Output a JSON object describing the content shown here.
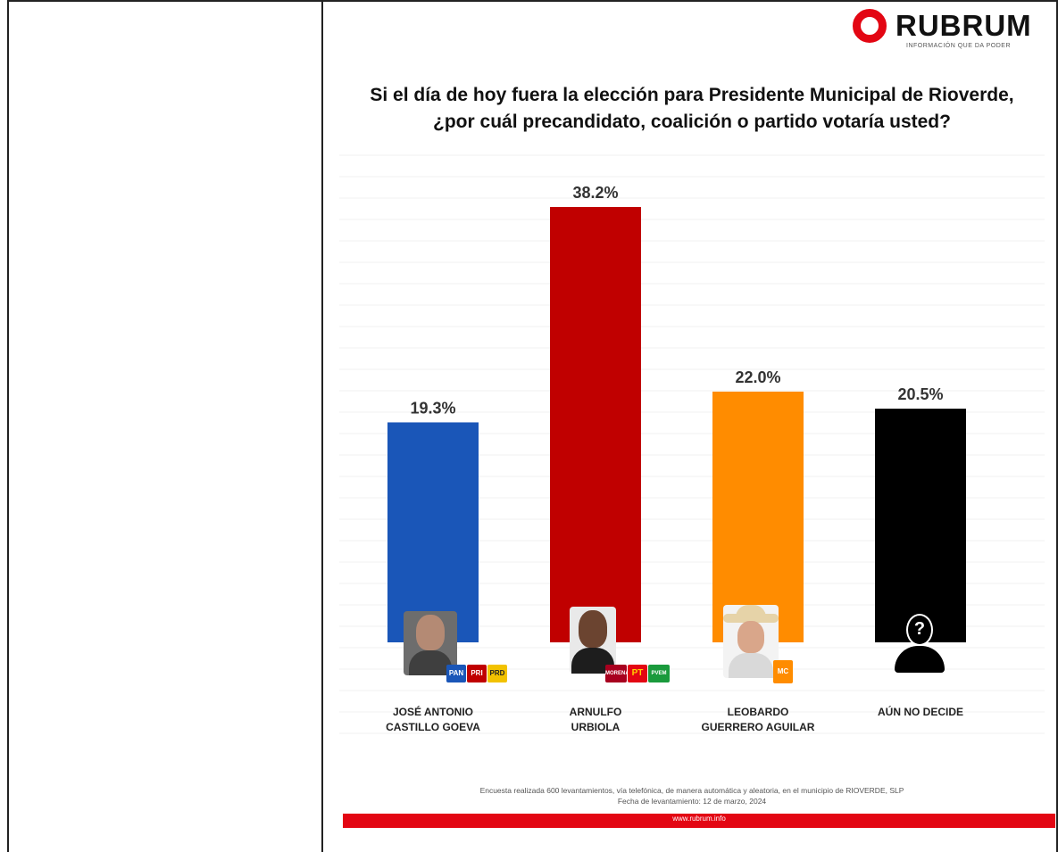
{
  "brand": {
    "name": "RUBRUM",
    "tagline": "INFORMACIÓN QUE DA PODER",
    "color": "#e30613"
  },
  "chart_data": {
    "type": "bar",
    "title_lines": [
      "Si el día de hoy fuera la elección para Presidente Municipal de Rioverde,",
      "¿por cuál precandidato, coalición o partido votaría usted?"
    ],
    "categories": [
      [
        "JOSÉ ANTONIO",
        "CASTILLO GOEVA"
      ],
      [
        "ARNULFO",
        "URBIOLA"
      ],
      [
        "LEOBARDO",
        "GUERRERO AGUILAR"
      ],
      [
        "AÚN NO DECIDE"
      ]
    ],
    "values": [
      19.3,
      38.2,
      22.0,
      20.5
    ],
    "value_labels": [
      "19.3%",
      "38.2%",
      "22.0%",
      "20.5%"
    ],
    "colors": [
      "#1a56b8",
      "#c00000",
      "#ff8c00",
      "#000000"
    ],
    "ylim": [
      0,
      40
    ],
    "grid": false,
    "legend": "none"
  },
  "parties": {
    "candidate1": [
      "PAN",
      "PRI",
      "PRD"
    ],
    "candidate2": [
      "MORENA",
      "PT",
      "PVEM"
    ],
    "candidate3": [
      "MC"
    ]
  },
  "footnote": {
    "line1": "Encuesta realizada 600 levantamientos, vía telefónica, de manera automática y aleatoria, en el municipio de RIOVERDE, SLP",
    "line2": "Fecha de levantamiento: 12 de marzo, 2024"
  },
  "footer_url": "www.rubrum.info"
}
